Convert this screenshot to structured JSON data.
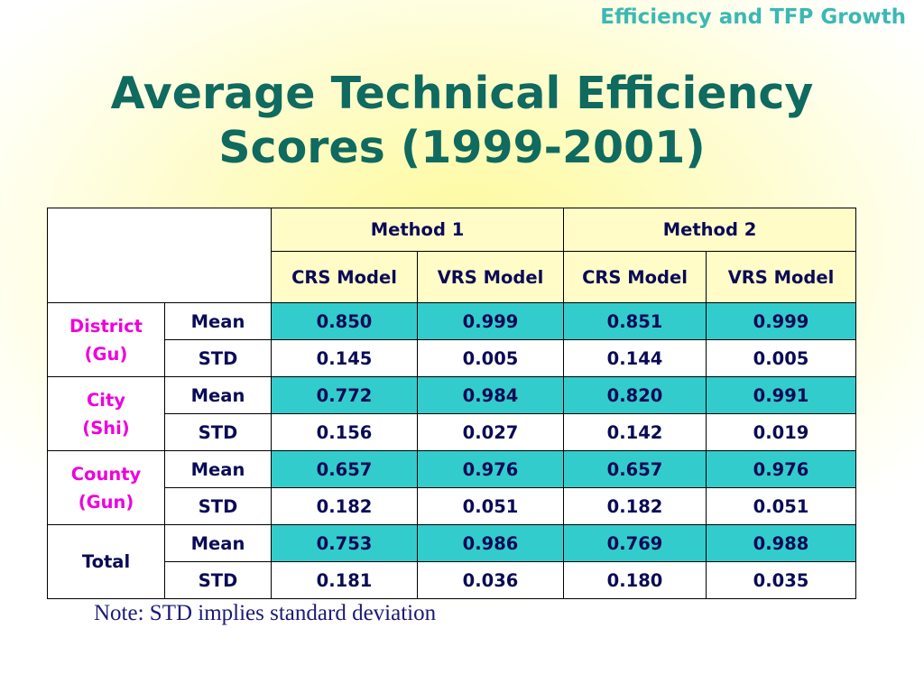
{
  "header": {
    "tag": "Efficiency and TFP Growth",
    "title_line1": "Average Technical Efficiency",
    "title_line2": "Scores (1999-2001)"
  },
  "table": {
    "method1": "Method 1",
    "method2": "Method 2",
    "m1_crs": "CRS Model",
    "m1_vrs": "VRS Model",
    "m2_crs": "CRS Model",
    "m2_vrs": "VRS Model",
    "groups": [
      {
        "label_line1": "District",
        "label_line2": "(Gu)",
        "mean_label": "Mean",
        "std_label": "STD",
        "mean": [
          "0.850",
          "0.999",
          "0.851",
          "0.999"
        ],
        "std": [
          "0.145",
          "0.005",
          "0.144",
          "0.005"
        ]
      },
      {
        "label_line1": "City",
        "label_line2": "(Shi)",
        "mean_label": "Mean",
        "std_label": "STD",
        "mean": [
          "0.772",
          "0.984",
          "0.820",
          "0.991"
        ],
        "std": [
          "0.156",
          "0.027",
          "0.142",
          "0.019"
        ]
      },
      {
        "label_line1": "County",
        "label_line2": "(Gun)",
        "mean_label": "Mean",
        "std_label": "STD",
        "mean": [
          "0.657",
          "0.976",
          "0.657",
          "0.976"
        ],
        "std": [
          "0.182",
          "0.051",
          "0.182",
          "0.051"
        ]
      },
      {
        "label_line1": "Total",
        "label_line2": "",
        "mean_label": "Mean",
        "std_label": "STD",
        "mean": [
          "0.753",
          "0.986",
          "0.769",
          "0.988"
        ],
        "std": [
          "0.181",
          "0.036",
          "0.180",
          "0.035"
        ]
      }
    ]
  },
  "note": "Note: STD implies standard deviation",
  "colors": {
    "title": "#0f6a5f",
    "tag": "#3cb8b4",
    "group_label": "#ee00dd",
    "mean_row_fill": "#33cccc",
    "header_fill": "#fffcc8"
  }
}
